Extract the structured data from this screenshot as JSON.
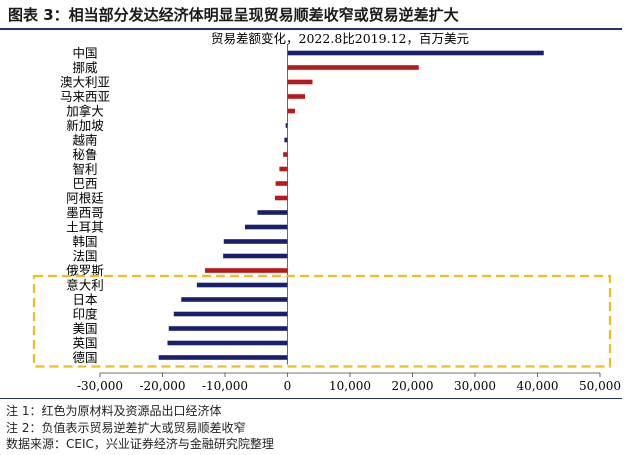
{
  "figure_title": "图表 3：相当部分发达经济体明显呈现贸易顺差收窄或贸易逆差扩大",
  "notes": [
    "注 1：红色为原材料及资源品出口经济体",
    "注 2：负值表示贸易逆差扩大或贸易顺差收窄",
    "数据来源：CEIC，兴业证券经济与金融研究院整理"
  ],
  "colors": {
    "navy": "#1a1f6b",
    "red": "#b8191b",
    "highlight": "#f2bd1e"
  },
  "chart_data": {
    "type": "bar",
    "orientation": "horizontal",
    "title": "贸易差额变化，2022.8比2019.12，百万美元",
    "categories": [
      "中国",
      "挪威",
      "澳大利亚",
      "马来西亚",
      "加拿大",
      "新加坡",
      "越南",
      "秘鲁",
      "智利",
      "巴西",
      "阿根廷",
      "墨西哥",
      "土耳其",
      "韩国",
      "法国",
      "俄罗斯",
      "意大利",
      "日本",
      "印度",
      "美国",
      "英国",
      "德国"
    ],
    "values": [
      41000,
      21000,
      4000,
      2800,
      1200,
      -300,
      -500,
      -700,
      -1300,
      -1900,
      -2000,
      -4800,
      -6800,
      -10200,
      -10300,
      -13200,
      -14500,
      -17000,
      -18200,
      -19000,
      -19200,
      -20600
    ],
    "raw_material_exporters": [
      "挪威",
      "澳大利亚",
      "马来西亚",
      "加拿大",
      "秘鲁",
      "智利",
      "巴西",
      "阿根廷",
      "俄罗斯"
    ],
    "xlim": [
      -30000,
      50000
    ],
    "xticks": [
      -30000,
      -20000,
      -10000,
      0,
      10000,
      20000,
      30000,
      40000,
      50000
    ],
    "xtick_labels": [
      "-30,000",
      "-20,000",
      "-10,000",
      "0",
      "10,000",
      "20,000",
      "30,000",
      "40,000",
      "50,000"
    ],
    "highlight_box_categories": [
      "意大利",
      "日本",
      "印度",
      "美国",
      "英国",
      "德国"
    ],
    "grid": false,
    "legend": "none"
  }
}
